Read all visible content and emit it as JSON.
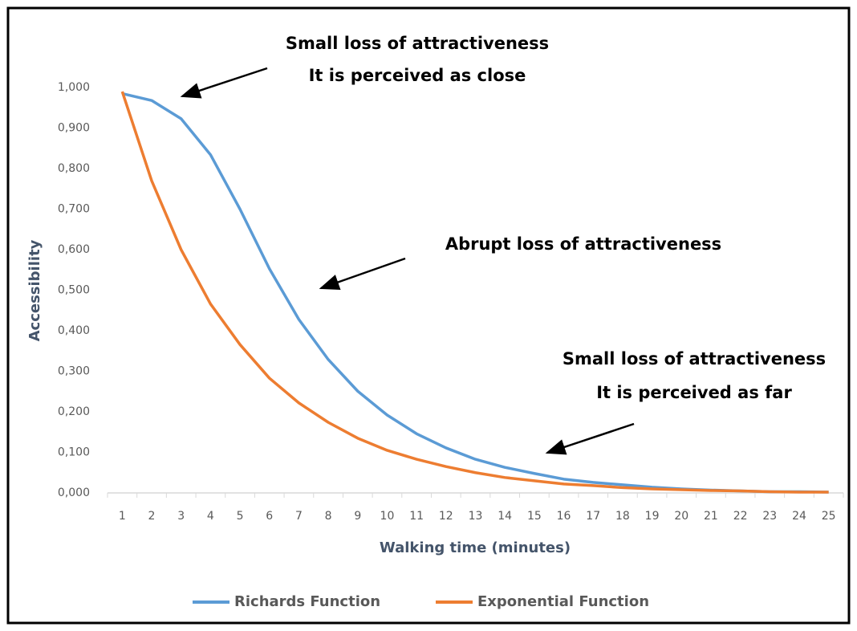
{
  "chart_data": {
    "type": "line",
    "xlabel": "Walking time (minutes)",
    "ylabel": "Accessibility",
    "categories": [
      "1",
      "2",
      "3",
      "4",
      "5",
      "6",
      "7",
      "8",
      "9",
      "10",
      "11",
      "12",
      "13",
      "14",
      "15",
      "16",
      "17",
      "18",
      "19",
      "20",
      "21",
      "22",
      "23",
      "24",
      "25"
    ],
    "series": [
      {
        "name": "Richards Function",
        "color": "#5b9bd5",
        "values": [
          0.985,
          0.968,
          0.923,
          0.834,
          0.7,
          0.553,
          0.428,
          0.329,
          0.251,
          0.192,
          0.146,
          0.111,
          0.083,
          0.063,
          0.048,
          0.034,
          0.026,
          0.02,
          0.014,
          0.01,
          0.007,
          0.005,
          0.003,
          0.003,
          0.002
        ]
      },
      {
        "name": "Exponential Function",
        "color": "#ed7d31",
        "values": [
          0.99,
          0.77,
          0.6,
          0.466,
          0.366,
          0.283,
          0.222,
          0.174,
          0.135,
          0.105,
          0.083,
          0.065,
          0.05,
          0.038,
          0.03,
          0.022,
          0.018,
          0.013,
          0.01,
          0.008,
          0.006,
          0.005,
          0.003,
          0.002,
          0.002
        ]
      }
    ],
    "ylim": [
      0,
      1
    ],
    "yticks": [
      {
        "value": 0,
        "label": "0,000"
      },
      {
        "value": 0.1,
        "label": "0,100"
      },
      {
        "value": 0.2,
        "label": "0,200"
      },
      {
        "value": 0.3,
        "label": "0,300"
      },
      {
        "value": 0.4,
        "label": "0,400"
      },
      {
        "value": 0.5,
        "label": "0,500"
      },
      {
        "value": 0.6,
        "label": "0,600"
      },
      {
        "value": 0.7,
        "label": "0,700"
      },
      {
        "value": 0.8,
        "label": "0,800"
      },
      {
        "value": 0.9,
        "label": "0,900"
      },
      {
        "value": 1,
        "label": "1,000"
      }
    ],
    "grid": false,
    "legend": "bottom",
    "annotations": [
      "Small loss of attractiveness",
      "It is perceived as close",
      "Abrupt loss of attractiveness",
      "Small loss of attractiveness",
      "It is perceived as far"
    ]
  }
}
